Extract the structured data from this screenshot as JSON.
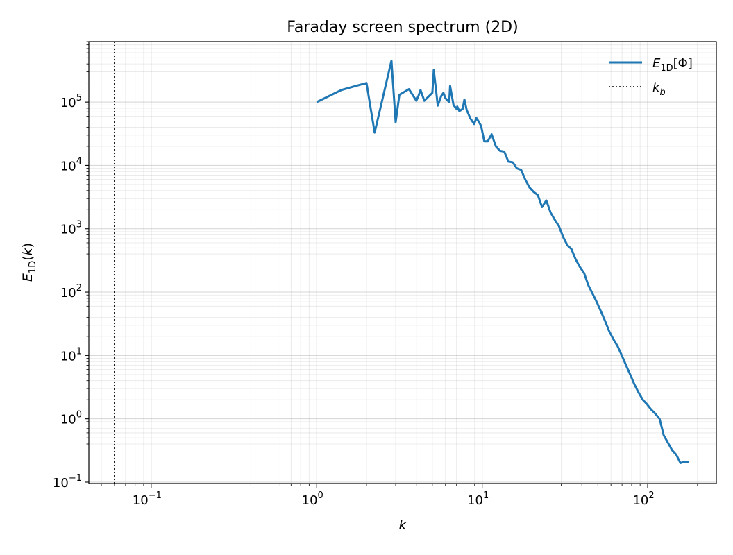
{
  "chart_data": {
    "type": "line",
    "title": "Faraday screen spectrum (2D)",
    "xlabel": "k",
    "ylabel": "E1D(k)",
    "xscale": "log",
    "yscale": "log",
    "xlim": [
      0.042,
      260
    ],
    "ylim": [
      0.095,
      900000
    ],
    "grid": true,
    "legend_placement": "top-right",
    "x_ticks": [
      {
        "base": "10",
        "exp": "−1"
      },
      {
        "base": "10",
        "exp": "0"
      },
      {
        "base": "10",
        "exp": "1"
      },
      {
        "base": "10",
        "exp": "2"
      }
    ],
    "y_ticks": [
      {
        "base": "10",
        "exp": "−1"
      },
      {
        "base": "10",
        "exp": "0"
      },
      {
        "base": "10",
        "exp": "1"
      },
      {
        "base": "10",
        "exp": "2"
      },
      {
        "base": "10",
        "exp": "3"
      },
      {
        "base": "10",
        "exp": "4"
      },
      {
        "base": "10",
        "exp": "5"
      }
    ],
    "series": [
      {
        "name": "E1D[Φ]",
        "legend_main": "E",
        "legend_sub": "1D",
        "legend_tail": "[Φ]",
        "color": "#1f77b4",
        "x": [
          1.0,
          1.41,
          2.0,
          2.24,
          2.83,
          3.0,
          3.16,
          3.61,
          4.0,
          4.12,
          4.24,
          4.47,
          5.0,
          5.1,
          5.39,
          5.66,
          5.83,
          6.0,
          6.32,
          6.4,
          6.71,
          7.0,
          7.07,
          7.28,
          7.62,
          7.81,
          8.06,
          8.49,
          8.94,
          9.22,
          9.49,
          9.85,
          10.3,
          10.8,
          11.4,
          12.1,
          12.8,
          13.6,
          14.4,
          15.3,
          16.2,
          17.2,
          18.2,
          19.3,
          20.5,
          21.7,
          23.0,
          24.4,
          25.9,
          27.4,
          29.1,
          30.8,
          32.7,
          34.6,
          36.7,
          38.9,
          41.3,
          43.7,
          46.4,
          49.2,
          52.1,
          55.3,
          58.6,
          62.1,
          65.8,
          69.8,
          74.0,
          78.4,
          83.1,
          88.1,
          93.4,
          99.0,
          105.0,
          111.3,
          118.0,
          125.0,
          132.5,
          140.5,
          148.9,
          157.8,
          167.3,
          177.0
        ],
        "y": [
          100000,
          155000,
          200000,
          33000,
          450000,
          48000,
          130000,
          160000,
          105000,
          125000,
          155000,
          105000,
          140000,
          320000,
          88000,
          125000,
          140000,
          115000,
          100000,
          180000,
          90000,
          78000,
          85000,
          72000,
          78000,
          110000,
          75000,
          55000,
          45000,
          56000,
          50000,
          42000,
          24000,
          24000,
          31000,
          20000,
          17000,
          16500,
          11500,
          11200,
          9000,
          8500,
          6000,
          4500,
          3800,
          3400,
          2200,
          2800,
          1800,
          1400,
          1100,
          750,
          550,
          480,
          330,
          250,
          200,
          130,
          95,
          70,
          50,
          35,
          24,
          18,
          14,
          10,
          7,
          5,
          3.5,
          2.6,
          2.0,
          1.7,
          1.4,
          1.2,
          1.0,
          0.55,
          0.42,
          0.32,
          0.27,
          0.2,
          0.21,
          0.21
        ]
      },
      {
        "name": "kb",
        "legend_main": "k",
        "legend_sub": "b",
        "color": "#000000",
        "vline_x": 0.06
      }
    ]
  }
}
